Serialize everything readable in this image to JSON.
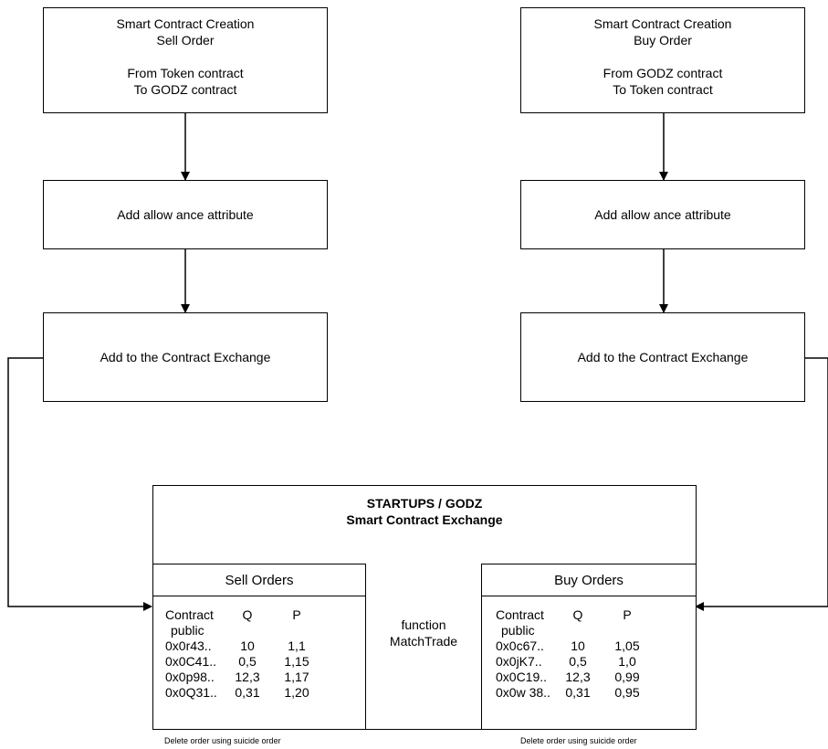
{
  "left_column": {
    "creation_lines": [
      "Smart Contract Creation",
      "Sell Order",
      "",
      "From Token contract",
      "To GODZ contract"
    ],
    "allowance": "Add allow ance attribute",
    "exchange": "Add to the Contract Exchange"
  },
  "right_column": {
    "creation_lines": [
      "Smart Contract Creation",
      "Buy Order",
      "",
      "From GODZ contract",
      "To Token contract"
    ],
    "allowance": "Add allow ance attribute",
    "exchange": "Add to the Contract Exchange"
  },
  "exchange_box": {
    "title_line1": "STARTUPS / GODZ",
    "title_line2": "Smart Contract Exchange",
    "function_line1": "function",
    "function_line2": "MatchTrade"
  },
  "sell_orders": {
    "header": "Sell Orders",
    "col_contract": "Contract",
    "col_contract_sub": "public",
    "col_q": "Q",
    "col_p": "P",
    "rows": [
      {
        "contract": "0x0r43..",
        "q": "10",
        "p": "1,1"
      },
      {
        "contract": "0x0C41..",
        "q": "0,5",
        "p": "1,15"
      },
      {
        "contract": "0x0p98..",
        "q": "12,3",
        "p": "1,17"
      },
      {
        "contract": "0x0Q31..",
        "q": "0,31",
        "p": "1,20"
      }
    ],
    "note": "Delete order using suicide order"
  },
  "buy_orders": {
    "header": "Buy Orders",
    "col_contract": "Contract",
    "col_contract_sub": "public",
    "col_q": "Q",
    "col_p": "P",
    "rows": [
      {
        "contract": "0x0c67..",
        "q": "10",
        "p": "1,05"
      },
      {
        "contract": "0x0jK7..",
        "q": "0,5",
        "p": "1,0"
      },
      {
        "contract": "0x0C19..",
        "q": "12,3",
        "p": "0,99"
      },
      {
        "contract": "0x0w 38..",
        "q": "0,31",
        "p": "0,95"
      }
    ],
    "note": "Delete order using suicide order"
  }
}
